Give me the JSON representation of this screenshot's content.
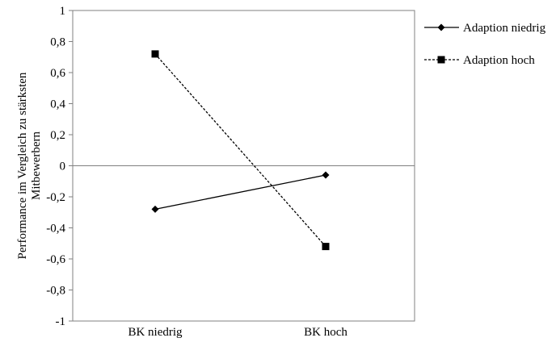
{
  "chart_data": {
    "type": "line",
    "title": "",
    "xlabel": "",
    "ylabel": "Performance im Vergleich zu stärksten Mitbewerbern",
    "ylabel_lines": [
      "Performance im Vergleich zu stärksten",
      "Mitbewerbern"
    ],
    "categories": [
      "BK niedrig",
      "BK hoch"
    ],
    "ylim": [
      -1,
      1
    ],
    "y_ticks": [
      1,
      0.8,
      0.6,
      0.4,
      0.2,
      0,
      -0.2,
      -0.4,
      -0.6,
      -0.8,
      -1
    ],
    "y_tick_labels": [
      "1",
      "0,8",
      "0,6",
      "0,4",
      "0,2",
      "0",
      "-0,2",
      "-0,4",
      "-0,6",
      "-0,8",
      "-1"
    ],
    "zero_line": true,
    "grid": false,
    "legend_position": "right",
    "series": [
      {
        "name": "Adaption niedrig",
        "values": [
          -0.28,
          -0.06
        ],
        "marker": "diamond",
        "line_style": "solid",
        "color": "#000000"
      },
      {
        "name": "Adaption hoch",
        "values": [
          0.72,
          -0.52
        ],
        "marker": "square",
        "line_style": "dashed",
        "color": "#000000"
      }
    ]
  }
}
